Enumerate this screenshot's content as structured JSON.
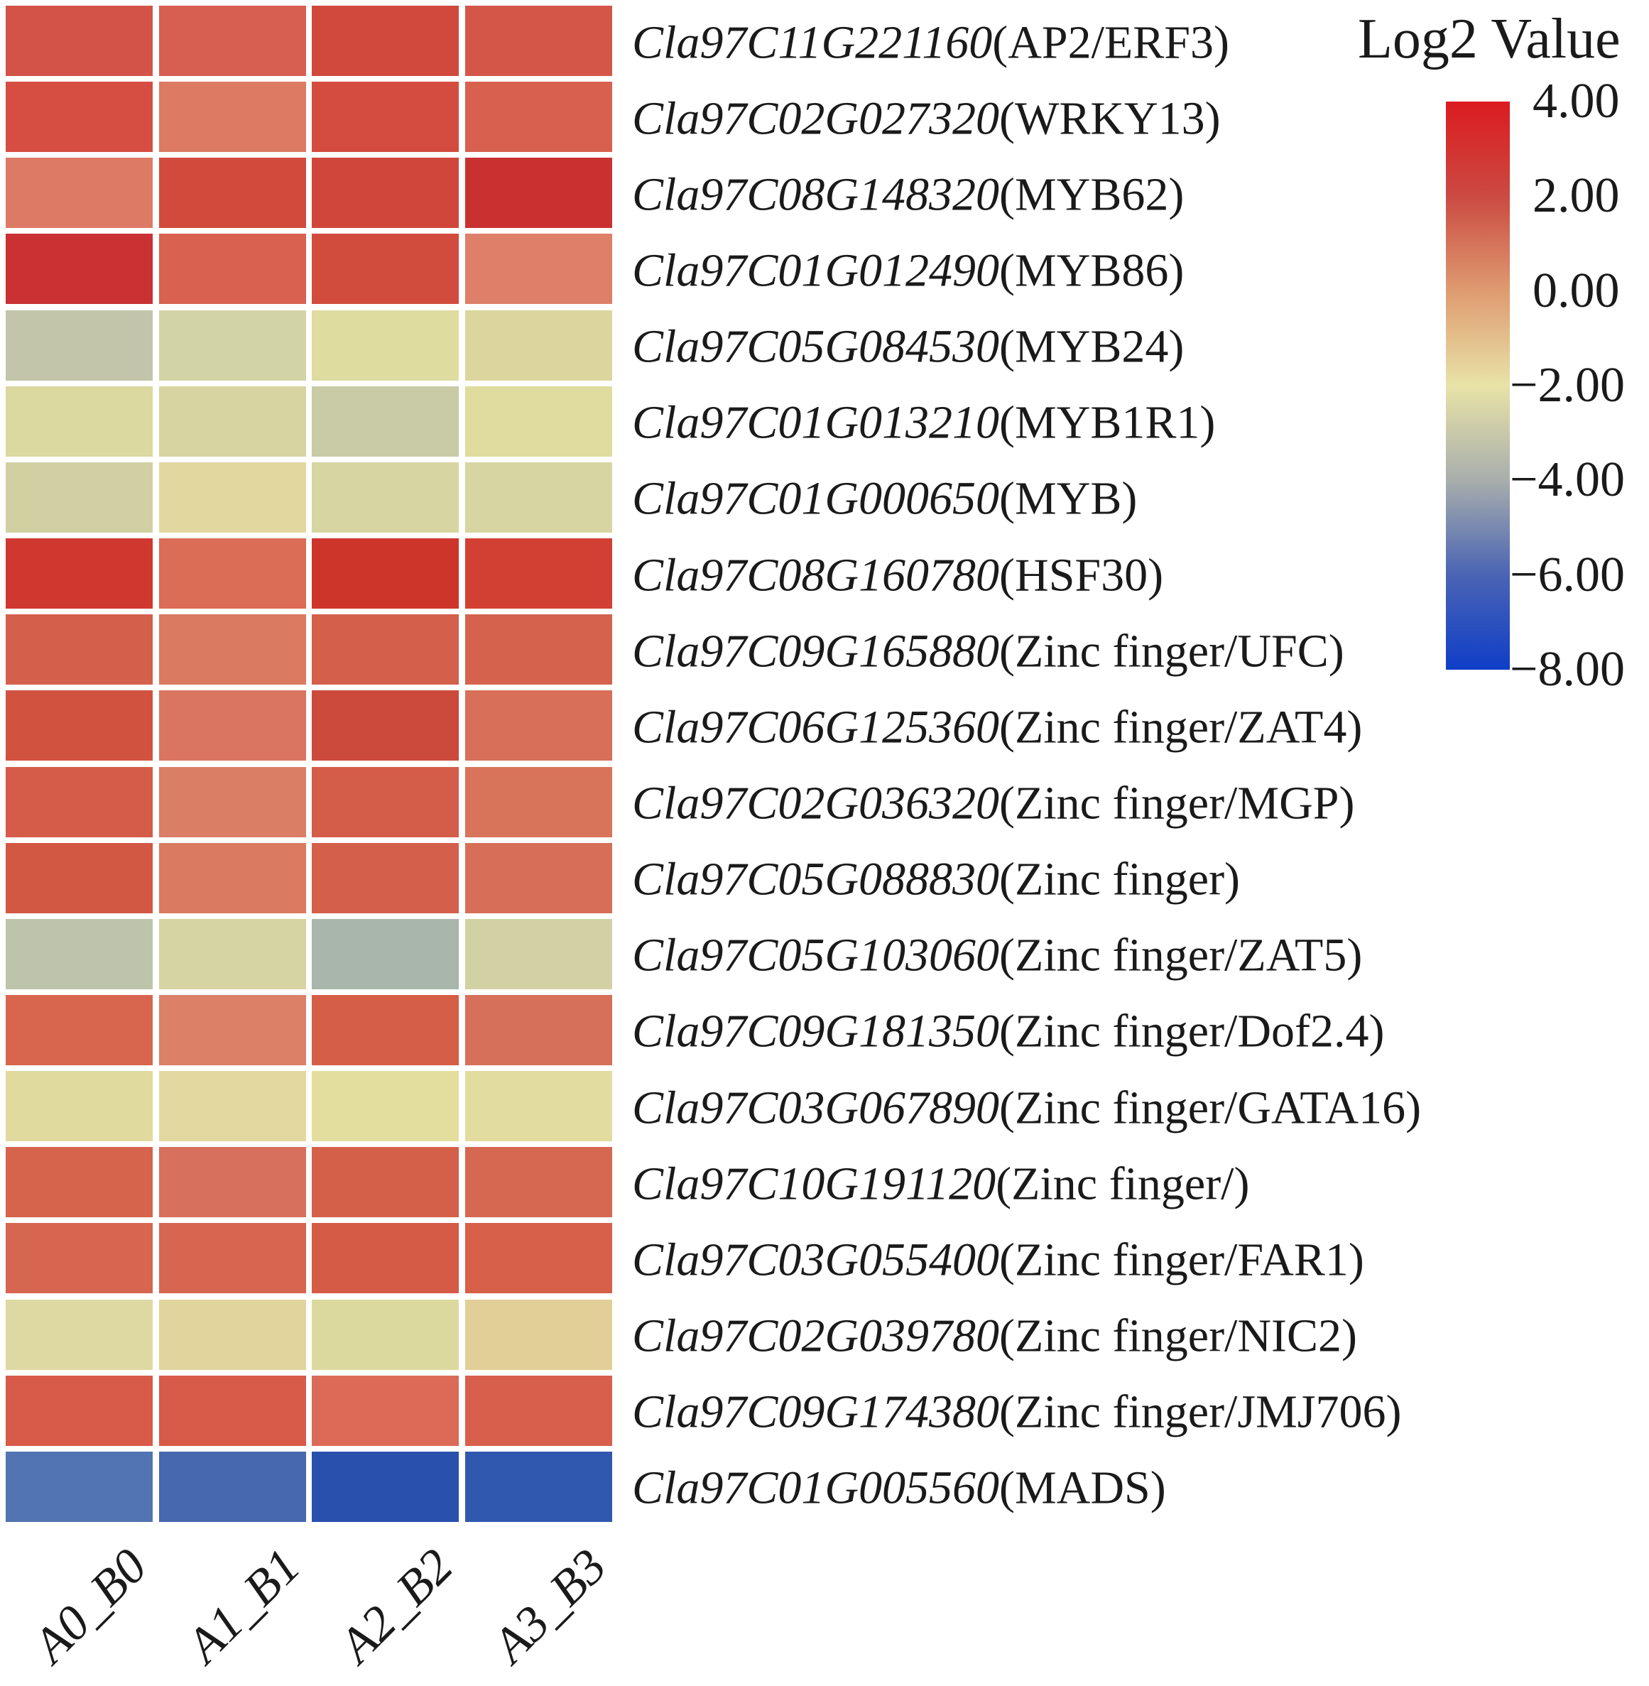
{
  "chart_data": {
    "type": "heatmap",
    "title": "",
    "value_label": "Log2 Value",
    "columns": [
      "A0_B0",
      "A1_B1",
      "A2_B2",
      "A3_B3"
    ],
    "legend": {
      "title": "Log2 Value",
      "ticks": [
        "4.00",
        "2.00",
        "0.00",
        "−2.00",
        "−4.00",
        "−6.00",
        "−8.00"
      ],
      "tick_values": [
        4,
        2,
        0,
        -2,
        -4,
        -6,
        -8
      ],
      "scale_min": -8,
      "scale_max": 4,
      "gradient_stops": [
        "#dc1b20",
        "#cb4a42",
        "#df9b70",
        "#e8e3a7",
        "#a8aeac",
        "#4a64b4",
        "#0f3ec8"
      ]
    },
    "rows": [
      {
        "gene": "Cla97C11G221160",
        "annotation": "(AP2/ERF3)",
        "values": [
          1.4,
          1.3,
          1.6,
          1.4
        ],
        "colors": [
          "#d35348",
          "#d65f51",
          "#d1493c",
          "#d45649"
        ]
      },
      {
        "gene": "Cla97C02G027320",
        "annotation": "(WRKY13)",
        "values": [
          1.7,
          0.6,
          1.7,
          1.2
        ],
        "colors": [
          "#d54e41",
          "#dc7a64",
          "#d44c3f",
          "#d8604e"
        ]
      },
      {
        "gene": "Cla97C08G148320",
        "annotation": "(MYB62)",
        "values": [
          0.6,
          1.9,
          2.0,
          2.3
        ],
        "colors": [
          "#dd7a66",
          "#d14a3c",
          "#d1463a",
          "#c93130"
        ]
      },
      {
        "gene": "Cla97C01G012490",
        "annotation": "(MYB86)",
        "values": [
          2.3,
          1.1,
          1.8,
          0.5
        ],
        "colors": [
          "#ca3132",
          "#d8624f",
          "#d24c3e",
          "#dd7f69"
        ]
      },
      {
        "gene": "Cla97C05G084530",
        "annotation": "(MYB24)",
        "values": [
          -3.1,
          -2.5,
          -2.1,
          -2.1
        ],
        "colors": [
          "#c2c5aa",
          "#d3d4a5",
          "#dedc9f",
          "#dcd69e"
        ]
      },
      {
        "gene": "Cla97C01G013210",
        "annotation": "(MYB1R1)",
        "values": [
          -2.2,
          -2.4,
          -2.9,
          -2.0
        ],
        "colors": [
          "#dbd8a0",
          "#d7d4a1",
          "#c8cba6",
          "#dfdc9e"
        ]
      },
      {
        "gene": "Cla97C01G000650",
        "annotation": "(MYB)",
        "values": [
          -2.6,
          -1.8,
          -2.3,
          -2.3
        ],
        "colors": [
          "#d1d0a3",
          "#e2d89f",
          "#d7d5a2",
          "#d7d6a2"
        ]
      },
      {
        "gene": "Cla97C08G160780",
        "annotation": "(HSF30)",
        "values": [
          2.2,
          0.9,
          2.4,
          2.0
        ],
        "colors": [
          "#cf382f",
          "#db6c56",
          "#cd352b",
          "#d14033"
        ]
      },
      {
        "gene": "Cla97C09G165880",
        "annotation": "(Zinc finger/UFC)",
        "values": [
          1.2,
          0.6,
          1.2,
          1.1
        ],
        "colors": [
          "#d4604b",
          "#d97a61",
          "#d45f4a",
          "#d5624d"
        ]
      },
      {
        "gene": "Cla97C06G125360",
        "annotation": "(Zinc finger/ZAT4)",
        "values": [
          1.6,
          0.7,
          1.9,
          0.8
        ],
        "colors": [
          "#d25240",
          "#d97560",
          "#cc4a3c",
          "#d76f59"
        ]
      },
      {
        "gene": "Cla97C02G036320",
        "annotation": "(Zinc finger/MGP)",
        "values": [
          1.3,
          0.5,
          1.3,
          0.8
        ],
        "colors": [
          "#d45c48",
          "#da7e66",
          "#d45d49",
          "#d87459"
        ]
      },
      {
        "gene": "Cla97C05G088830",
        "annotation": "(Zinc finger)",
        "values": [
          1.4,
          0.6,
          1.2,
          0.8
        ],
        "colors": [
          "#d35844",
          "#d97a61",
          "#d4604b",
          "#d76f58"
        ]
      },
      {
        "gene": "Cla97C05G103060",
        "annotation": "(Zinc finger/ZAT5)",
        "values": [
          -3.3,
          -2.4,
          -3.9,
          -2.5
        ],
        "colors": [
          "#bec3ac",
          "#d5d4a2",
          "#a9b6ab",
          "#d2d1a4"
        ]
      },
      {
        "gene": "Cla97C09G181350",
        "annotation": "(Zinc finger/Dof2.4)",
        "values": [
          1.1,
          0.5,
          1.3,
          0.8
        ],
        "colors": [
          "#d8664f",
          "#dc8068",
          "#d55e47",
          "#d7705a"
        ]
      },
      {
        "gene": "Cla97C03G067890",
        "annotation": "(Zinc finger/GATA16)",
        "values": [
          -2.0,
          -1.9,
          -2.0,
          -2.0
        ],
        "colors": [
          "#e1da9f",
          "#e3d8a0",
          "#e3de9d",
          "#e2dc9f"
        ]
      },
      {
        "gene": "Cla97C10G191120",
        "annotation": "(Zinc finger/)",
        "values": [
          1.1,
          0.8,
          1.2,
          1.0
        ],
        "colors": [
          "#d6634c",
          "#d7705c",
          "#d5604a",
          "#d66751"
        ]
      },
      {
        "gene": "Cla97C03G055400",
        "annotation": "(Zinc finger/FAR1)",
        "values": [
          1.1,
          1.1,
          1.3,
          1.2
        ],
        "colors": [
          "#d66650",
          "#d66650",
          "#d55b46",
          "#d66048"
        ]
      },
      {
        "gene": "Cla97C02G039780",
        "annotation": "(Zinc finger/NIC2)",
        "values": [
          -2.1,
          -1.9,
          -2.1,
          -1.8
        ],
        "colors": [
          "#ded9a3",
          "#e1d59d",
          "#dcd99f",
          "#e1cf97"
        ]
      },
      {
        "gene": "Cla97C09G174380",
        "annotation": "(Zinc finger/JMJ706)",
        "values": [
          1.3,
          1.3,
          0.9,
          1.2
        ],
        "colors": [
          "#d85a49",
          "#d85a49",
          "#db6b57",
          "#d85f4c"
        ]
      },
      {
        "gene": "Cla97C01G005560",
        "annotation": "(MADS)",
        "values": [
          -6.3,
          -6.5,
          -7.5,
          -7.2
        ],
        "colors": [
          "#5274b2",
          "#4568ae",
          "#2a50ad",
          "#3158af"
        ]
      }
    ]
  }
}
